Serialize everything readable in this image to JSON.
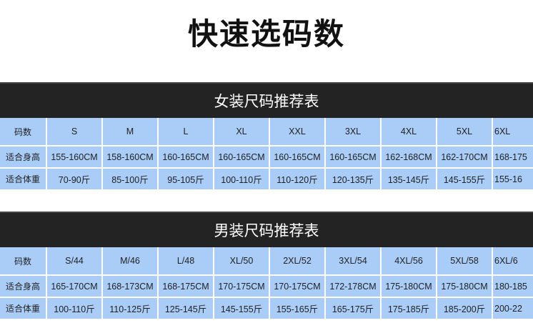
{
  "title": "快速选码数",
  "tables": [
    {
      "heading": "女装尺码推荐表",
      "rows": [
        [
          "码数",
          "S",
          "M",
          "L",
          "XL",
          "XXL",
          "3XL",
          "4XL",
          "5XL",
          "6XL"
        ],
        [
          "适合身高",
          "155-160CM",
          "158-160CM",
          "160-165CM",
          "160-165CM",
          "160-165CM",
          "160-165CM",
          "162-168CM",
          "162-170CM",
          "168-175"
        ],
        [
          "适合体重",
          "70-90斤",
          "85-100斤",
          "95-105斤",
          "100-110斤",
          "110-120斤",
          "120-135斤",
          "135-145斤",
          "145-155斤",
          "155-16"
        ]
      ]
    },
    {
      "heading": "男装尺码推荐表",
      "rows": [
        [
          "码数",
          "S/44",
          "M/46",
          "L/48",
          "XL/50",
          "2XL/52",
          "3XL/54",
          "4XL/56",
          "5XL/58",
          "6XL/6"
        ],
        [
          "适合身高",
          "165-170CM",
          "168-173CM",
          "168-175CM",
          "170-175CM",
          "170-175CM",
          "172-178CM",
          "175-180CM",
          "175-180CM",
          "180-185"
        ],
        [
          "适合体重",
          "100-110斤",
          "110-125斤",
          "125-145斤",
          "145-155斤",
          "155-165斤",
          "165-175斤",
          "175-185斤",
          "185-200斤",
          "200-22"
        ]
      ]
    }
  ],
  "colors": {
    "header_bar": "#232323",
    "cell_bg": "#a9cdf6"
  }
}
